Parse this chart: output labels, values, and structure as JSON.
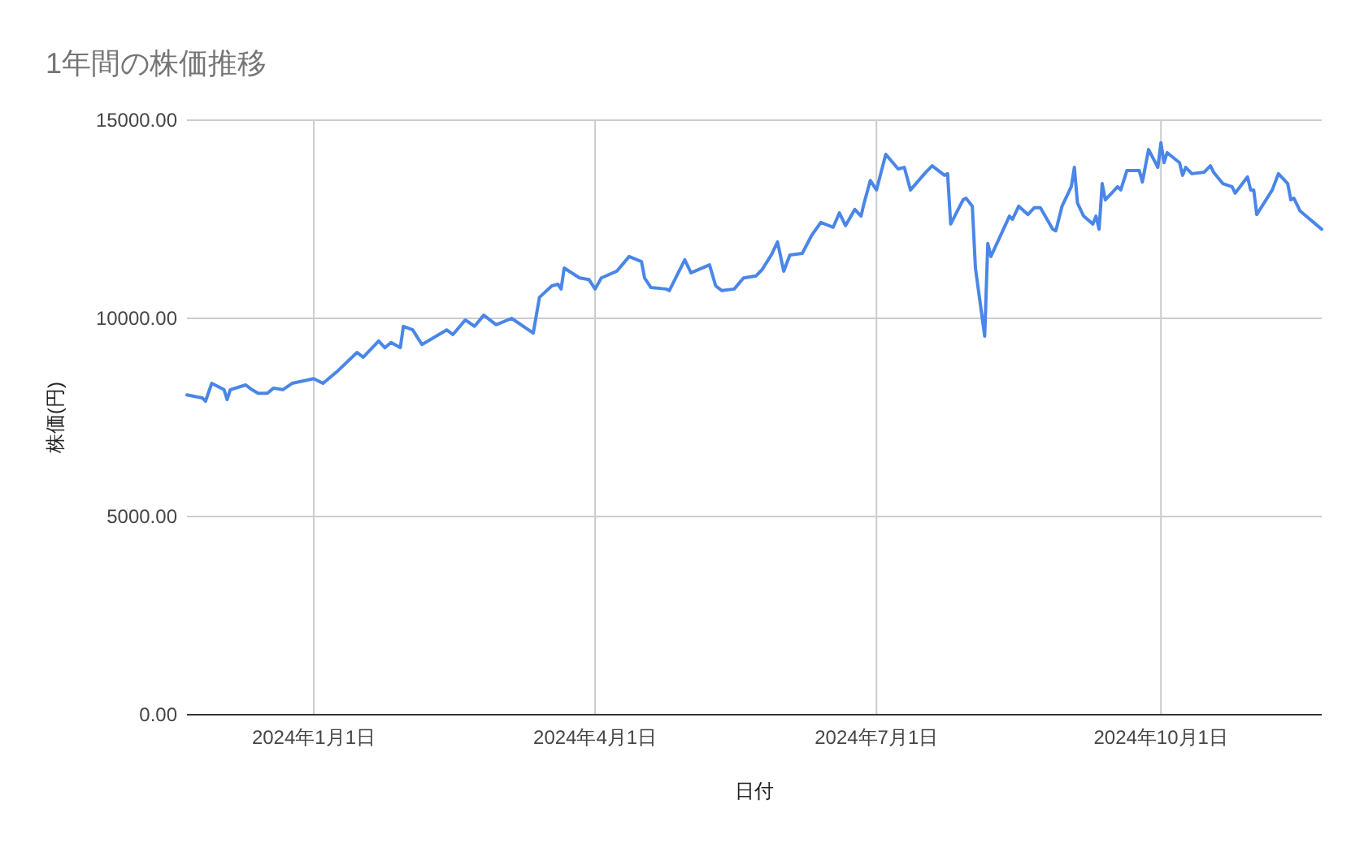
{
  "chart_data": {
    "type": "line",
    "title": "1年間の株価推移",
    "xlabel": "日付",
    "ylabel": "株価(円)",
    "x": [
      "2023-11-21",
      "2023-11-26",
      "2023-11-27",
      "2023-11-29",
      "2023-12-03",
      "2023-12-04",
      "2023-12-05",
      "2023-12-10",
      "2023-12-12",
      "2023-12-14",
      "2023-12-17",
      "2023-12-19",
      "2023-12-22",
      "2023-12-25",
      "2024-01-01",
      "2024-01-04",
      "2024-01-09",
      "2024-01-15",
      "2024-01-17",
      "2024-01-22",
      "2024-01-24",
      "2024-01-26",
      "2024-01-29",
      "2024-01-30",
      "2024-02-02",
      "2024-02-05",
      "2024-02-13",
      "2024-02-15",
      "2024-02-19",
      "2024-02-22",
      "2024-02-25",
      "2024-02-29",
      "2024-03-05",
      "2024-03-12",
      "2024-03-14",
      "2024-03-18",
      "2024-03-20",
      "2024-03-21",
      "2024-03-22",
      "2024-03-27",
      "2024-03-30",
      "2024-04-01",
      "2024-04-03",
      "2024-04-08",
      "2024-04-12",
      "2024-04-16",
      "2024-04-17",
      "2024-04-19",
      "2024-04-24",
      "2024-04-25",
      "2024-04-30",
      "2024-05-02",
      "2024-05-08",
      "2024-05-10",
      "2024-05-12",
      "2024-05-16",
      "2024-05-19",
      "2024-05-23",
      "2024-05-25",
      "2024-05-28",
      "2024-05-30",
      "2024-06-01",
      "2024-06-03",
      "2024-06-07",
      "2024-06-10",
      "2024-06-13",
      "2024-06-17",
      "2024-06-19",
      "2024-06-21",
      "2024-06-24",
      "2024-06-26",
      "2024-06-27",
      "2024-06-29",
      "2024-07-01",
      "2024-07-04",
      "2024-07-08",
      "2024-07-10",
      "2024-07-12",
      "2024-07-17",
      "2024-07-19",
      "2024-07-23",
      "2024-07-24",
      "2024-07-25",
      "2024-07-29",
      "2024-07-30",
      "2024-08-01",
      "2024-08-02",
      "2024-08-05",
      "2024-08-06",
      "2024-08-07",
      "2024-08-13",
      "2024-08-14",
      "2024-08-16",
      "2024-08-19",
      "2024-08-21",
      "2024-08-23",
      "2024-08-27",
      "2024-08-28",
      "2024-08-30",
      "2024-09-02",
      "2024-09-03",
      "2024-09-04",
      "2024-09-06",
      "2024-09-09",
      "2024-09-10",
      "2024-09-11",
      "2024-09-12",
      "2024-09-13",
      "2024-09-17",
      "2024-09-18",
      "2024-09-20",
      "2024-09-24",
      "2024-09-25",
      "2024-09-27",
      "2024-09-30",
      "2024-10-01",
      "2024-10-02",
      "2024-10-03",
      "2024-10-07",
      "2024-10-08",
      "2024-10-09",
      "2024-10-11",
      "2024-10-15",
      "2024-10-17",
      "2024-10-18",
      "2024-10-21",
      "2024-10-24",
      "2024-10-25",
      "2024-10-29",
      "2024-10-30",
      "2024-10-31",
      "2024-11-01",
      "2024-11-06",
      "2024-11-08",
      "2024-11-11",
      "2024-11-12",
      "2024-11-13",
      "2024-11-15",
      "2024-11-20",
      "2024-11-22"
    ],
    "series": [
      {
        "color": "#4a86e8",
        "values": [
          8070,
          7990,
          7910,
          8360,
          8200,
          7950,
          8200,
          8320,
          8200,
          8110,
          8110,
          8240,
          8200,
          8360,
          8480,
          8360,
          8690,
          9140,
          9020,
          9430,
          9260,
          9390,
          9260,
          9800,
          9710,
          9340,
          9710,
          9590,
          9960,
          9800,
          10080,
          9840,
          10000,
          9630,
          10530,
          10820,
          10860,
          10740,
          11270,
          11020,
          10980,
          10740,
          11020,
          11190,
          11560,
          11430,
          11020,
          10780,
          10740,
          10700,
          11480,
          11150,
          11350,
          10820,
          10700,
          10740,
          11020,
          11070,
          11230,
          11600,
          11930,
          11190,
          11600,
          11640,
          12090,
          12420,
          12300,
          12660,
          12340,
          12750,
          12580,
          12910,
          13480,
          13240,
          14140,
          13770,
          13810,
          13240,
          13690,
          13850,
          13610,
          13650,
          12380,
          12990,
          13030,
          12830,
          11270,
          9550,
          11890,
          11560,
          12580,
          12500,
          12830,
          12620,
          12790,
          12790,
          12250,
          12210,
          12830,
          13320,
          13810,
          12910,
          12580,
          12380,
          12580,
          12250,
          13400,
          12990,
          13320,
          13240,
          13730,
          13730,
          13440,
          14260,
          13810,
          14430,
          13930,
          14180,
          13930,
          13610,
          13810,
          13650,
          13690,
          13850,
          13690,
          13400,
          13320,
          13160,
          13570,
          13240,
          13240,
          12620,
          13240,
          13650,
          13400,
          12990,
          13030,
          12710,
          12380,
          12250
        ]
      }
    ],
    "xlim": [
      "2023-11-21",
      "2024-11-22"
    ],
    "xticks": [
      {
        "value": "2024-01-01",
        "label": "2024年1月1日"
      },
      {
        "value": "2024-04-01",
        "label": "2024年4月1日"
      },
      {
        "value": "2024-07-01",
        "label": "2024年7月1日"
      },
      {
        "value": "2024-10-01",
        "label": "2024年10月1日"
      }
    ],
    "ylim": [
      0,
      15000
    ],
    "yticks": [
      {
        "value": 0,
        "label": "0.00"
      },
      {
        "value": 5000,
        "label": "5000.00"
      },
      {
        "value": 10000,
        "label": "10000.00"
      },
      {
        "value": 15000,
        "label": "15000.00"
      }
    ],
    "grid": true,
    "marker": "none",
    "line_style": "solid"
  }
}
